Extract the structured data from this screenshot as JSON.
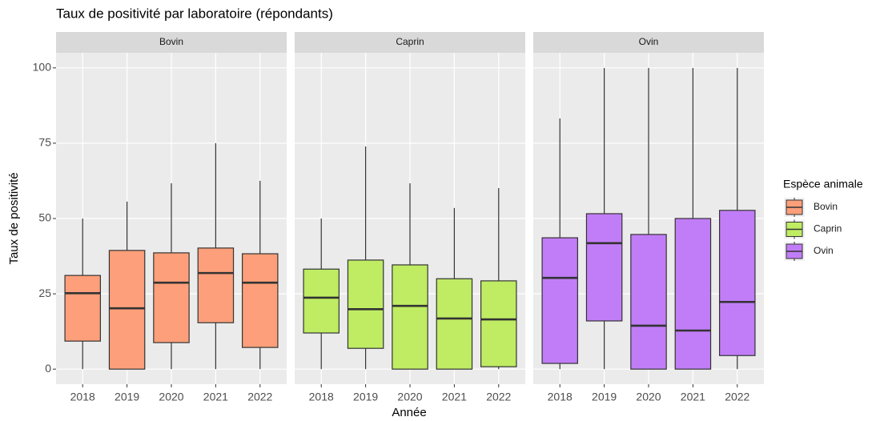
{
  "chart_data": {
    "type": "boxplot",
    "title": "Taux de positivité par laboratoire (répondants)",
    "x_label": "Année",
    "y_label": "Taux de positivité",
    "legend_title": "Espèce animale",
    "ylim": [
      -5,
      105
    ],
    "yticks": [
      0,
      25,
      50,
      75,
      100
    ],
    "grid": true,
    "panels": [
      {
        "name": "Bovin",
        "color": "#fc9f7a",
        "categories": [
          "2018",
          "2019",
          "2020",
          "2021",
          "2022"
        ],
        "min": [
          0,
          0,
          0,
          0,
          0
        ],
        "q1": [
          9.3,
          0,
          8.8,
          15.4,
          7.2
        ],
        "median": [
          25.2,
          20.2,
          28.7,
          31.9,
          28.7
        ],
        "q3": [
          31.1,
          39.4,
          38.6,
          40.2,
          38.3
        ],
        "max": [
          50,
          55.6,
          61.7,
          75,
          62.5
        ]
      },
      {
        "name": "Caprin",
        "color": "#bfec63",
        "categories": [
          "2018",
          "2019",
          "2020",
          "2021",
          "2022"
        ],
        "min": [
          0,
          0,
          0,
          0,
          0
        ],
        "q1": [
          12,
          6.9,
          0,
          0,
          0.8
        ],
        "median": [
          23.7,
          19.9,
          21,
          16.8,
          16.5
        ],
        "q3": [
          33.2,
          36.2,
          34.6,
          30,
          29.3
        ],
        "max": [
          50,
          73.9,
          61.7,
          53.5,
          60.1
        ]
      },
      {
        "name": "Ovin",
        "color": "#c17df7",
        "categories": [
          "2018",
          "2019",
          "2020",
          "2021",
          "2022"
        ],
        "min": [
          0,
          0,
          0,
          0,
          0
        ],
        "q1": [
          1.9,
          16,
          0,
          0,
          4.5
        ],
        "median": [
          30.3,
          41.8,
          14.4,
          12.8,
          22.3
        ],
        "q3": [
          43.6,
          51.6,
          44.7,
          50,
          52.7
        ],
        "max": [
          83.2,
          100,
          100,
          100,
          100
        ]
      }
    ]
  }
}
